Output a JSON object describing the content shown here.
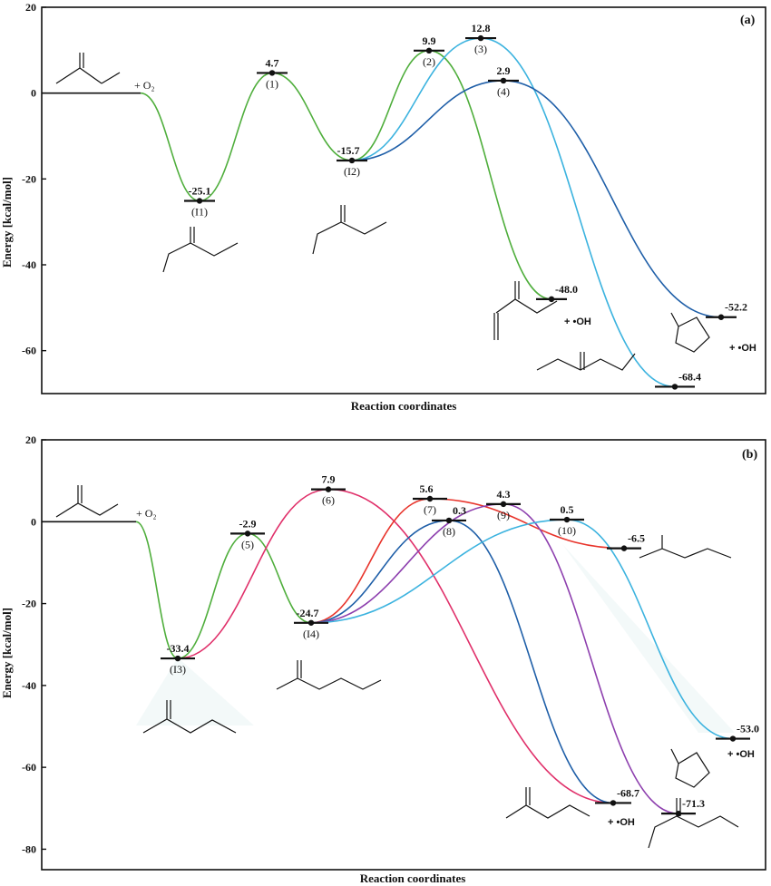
{
  "chart_data": [
    {
      "type": "line",
      "panel": "(a)",
      "xlabel": "Reaction coordinates",
      "ylabel": "Energy [kcal/mol]",
      "ylim": [
        -70,
        20
      ],
      "yticks": [
        20,
        0,
        -20,
        -40,
        -60
      ],
      "reactant_label": "+ O₂",
      "species": [
        {
          "id": "R",
          "label": "",
          "energy": 0
        },
        {
          "id": "I1",
          "label": "(I1)",
          "energy": -25.1
        },
        {
          "id": "1",
          "label": "(1)",
          "energy": 4.7
        },
        {
          "id": "I2",
          "label": "(I2)",
          "energy": -15.7
        },
        {
          "id": "2",
          "label": "(2)",
          "energy": 9.9
        },
        {
          "id": "3",
          "label": "(3)",
          "energy": 12.8
        },
        {
          "id": "4",
          "label": "(4)",
          "energy": 2.9
        },
        {
          "id": "P1",
          "label": "",
          "energy": -48.0
        },
        {
          "id": "P2",
          "label": "",
          "energy": -68.4
        },
        {
          "id": "P3",
          "label": "",
          "energy": -52.2
        }
      ],
      "paths": [
        {
          "color": "#4fae3c",
          "via": [
            "R",
            "I1",
            "1",
            "I2"
          ]
        },
        {
          "color": "#4fae3c",
          "via": [
            "I2",
            "2",
            "P1"
          ]
        },
        {
          "color": "#3cb3df",
          "via": [
            "I2",
            "3",
            "P2"
          ]
        },
        {
          "color": "#1f5fa8",
          "via": [
            "I2",
            "4",
            "P3"
          ]
        }
      ],
      "product_labels": [
        "+ •OH",
        "+ •OH"
      ]
    },
    {
      "type": "line",
      "panel": "(b)",
      "xlabel": "Reaction coordinates",
      "ylabel": "Energy [kcal/mol]",
      "ylim": [
        -85,
        20
      ],
      "yticks": [
        20,
        0,
        -20,
        -40,
        -60,
        -80
      ],
      "reactant_label": "+ O₂",
      "species": [
        {
          "id": "R",
          "label": "",
          "energy": 0
        },
        {
          "id": "I3",
          "label": "(I3)",
          "energy": -33.4
        },
        {
          "id": "5",
          "label": "(5)",
          "energy": -2.9
        },
        {
          "id": "6",
          "label": "(6)",
          "energy": 7.9
        },
        {
          "id": "I4",
          "label": "(I4)",
          "energy": -24.7
        },
        {
          "id": "7",
          "label": "(7)",
          "energy": 5.6
        },
        {
          "id": "8",
          "label": "(8)",
          "energy": 0.3
        },
        {
          "id": "9",
          "label": "(9)",
          "energy": 4.3
        },
        {
          "id": "10",
          "label": "(10)",
          "energy": 0.5
        },
        {
          "id": "P4",
          "label": "",
          "energy": -6.5
        },
        {
          "id": "P5",
          "label": "",
          "energy": -68.7
        },
        {
          "id": "P6",
          "label": "",
          "energy": -71.3
        },
        {
          "id": "P7",
          "label": "",
          "energy": -53.0
        }
      ],
      "paths": [
        {
          "color": "#4fae3c",
          "via": [
            "R",
            "I3",
            "5",
            "I4"
          ]
        },
        {
          "color": "#e0306a",
          "via": [
            "I3",
            "6",
            "P5"
          ]
        },
        {
          "color": "#e8342b",
          "via": [
            "I4",
            "7",
            "P4"
          ]
        },
        {
          "color": "#1f5fa8",
          "via": [
            "I4",
            "8",
            "P5"
          ]
        },
        {
          "color": "#8d3fae",
          "via": [
            "I4",
            "9",
            "P6"
          ]
        },
        {
          "color": "#3cb3df",
          "via": [
            "I4",
            "10",
            "P7"
          ]
        }
      ],
      "product_labels": [
        "+ •OH",
        "+ •OH"
      ]
    }
  ]
}
